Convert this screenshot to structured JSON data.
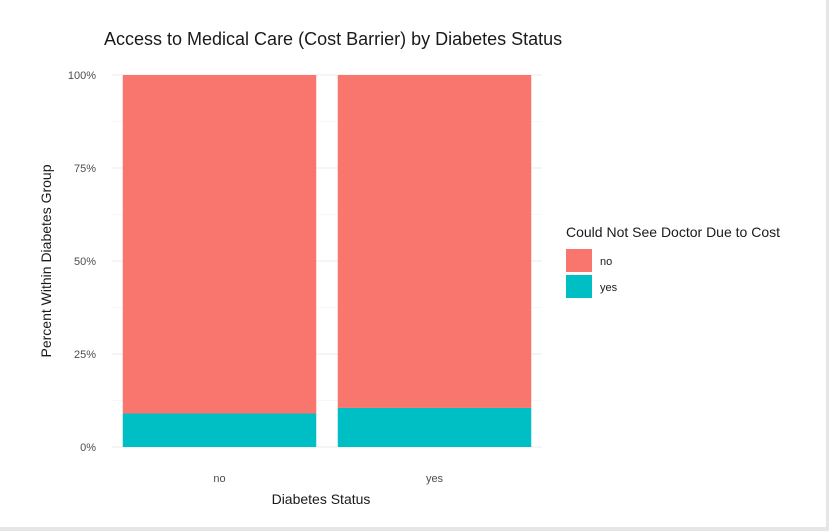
{
  "chart_data": {
    "type": "bar",
    "stacked": true,
    "percent_stacked": true,
    "title": "Access to Medical Care (Cost Barrier) by Diabetes Status",
    "xlabel": "Diabetes Status",
    "ylabel": "Percent Within Diabetes Group",
    "categories": [
      "no",
      "yes"
    ],
    "series": [
      {
        "name": "no",
        "values": [
          91,
          89.5
        ],
        "color": "#F8766D"
      },
      {
        "name": "yes",
        "values": [
          9,
          10.5
        ],
        "color": "#00BFC4"
      }
    ],
    "ylim": [
      0,
      100
    ],
    "y_ticks": [
      0,
      25,
      50,
      75,
      100
    ],
    "y_tick_labels": [
      "0%",
      "25%",
      "50%",
      "75%",
      "100%"
    ],
    "grid": true,
    "legend": {
      "title": "Could Not See Doctor Due to Cost",
      "position": "right",
      "entries": [
        "no",
        "yes"
      ]
    }
  }
}
